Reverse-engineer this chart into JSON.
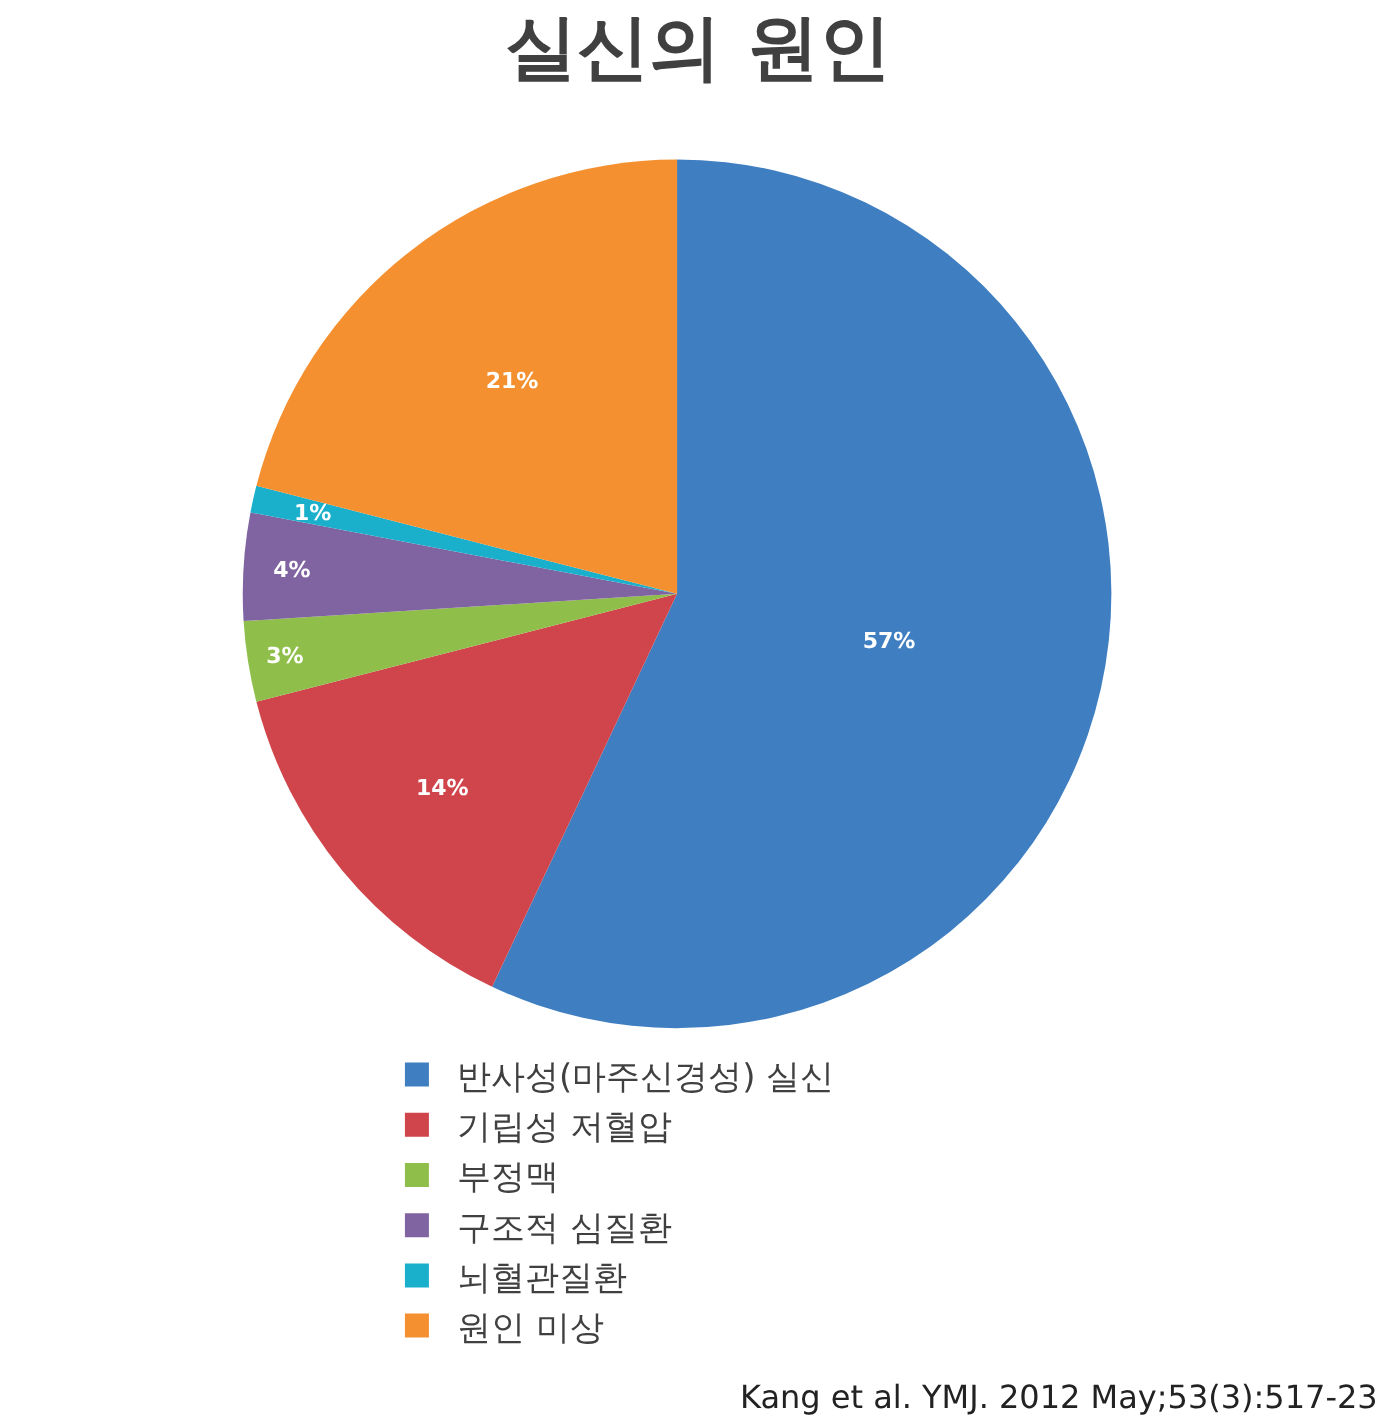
{
  "chart_data": {
    "type": "pie",
    "title": "실신의 원인",
    "categories": [
      "반사성(마주신경성) 실신",
      "기립성 저혈압",
      "부정맥",
      "구조적 심질환",
      "뇌혈관질환",
      "원인 미상"
    ],
    "values": [
      57,
      14,
      3,
      4,
      1,
      21
    ],
    "colors": [
      "#3f7fc1",
      "#d0454b",
      "#8fbf4a",
      "#8064a2",
      "#1ab0cc",
      "#f59030"
    ],
    "value_labels": [
      "57%",
      "14%",
      "3%",
      "4%",
      "1%",
      "21%"
    ],
    "legend": "bottom",
    "annotations": [
      "Kang et al. YMJ. 2012 May;53(3):517-23"
    ]
  }
}
